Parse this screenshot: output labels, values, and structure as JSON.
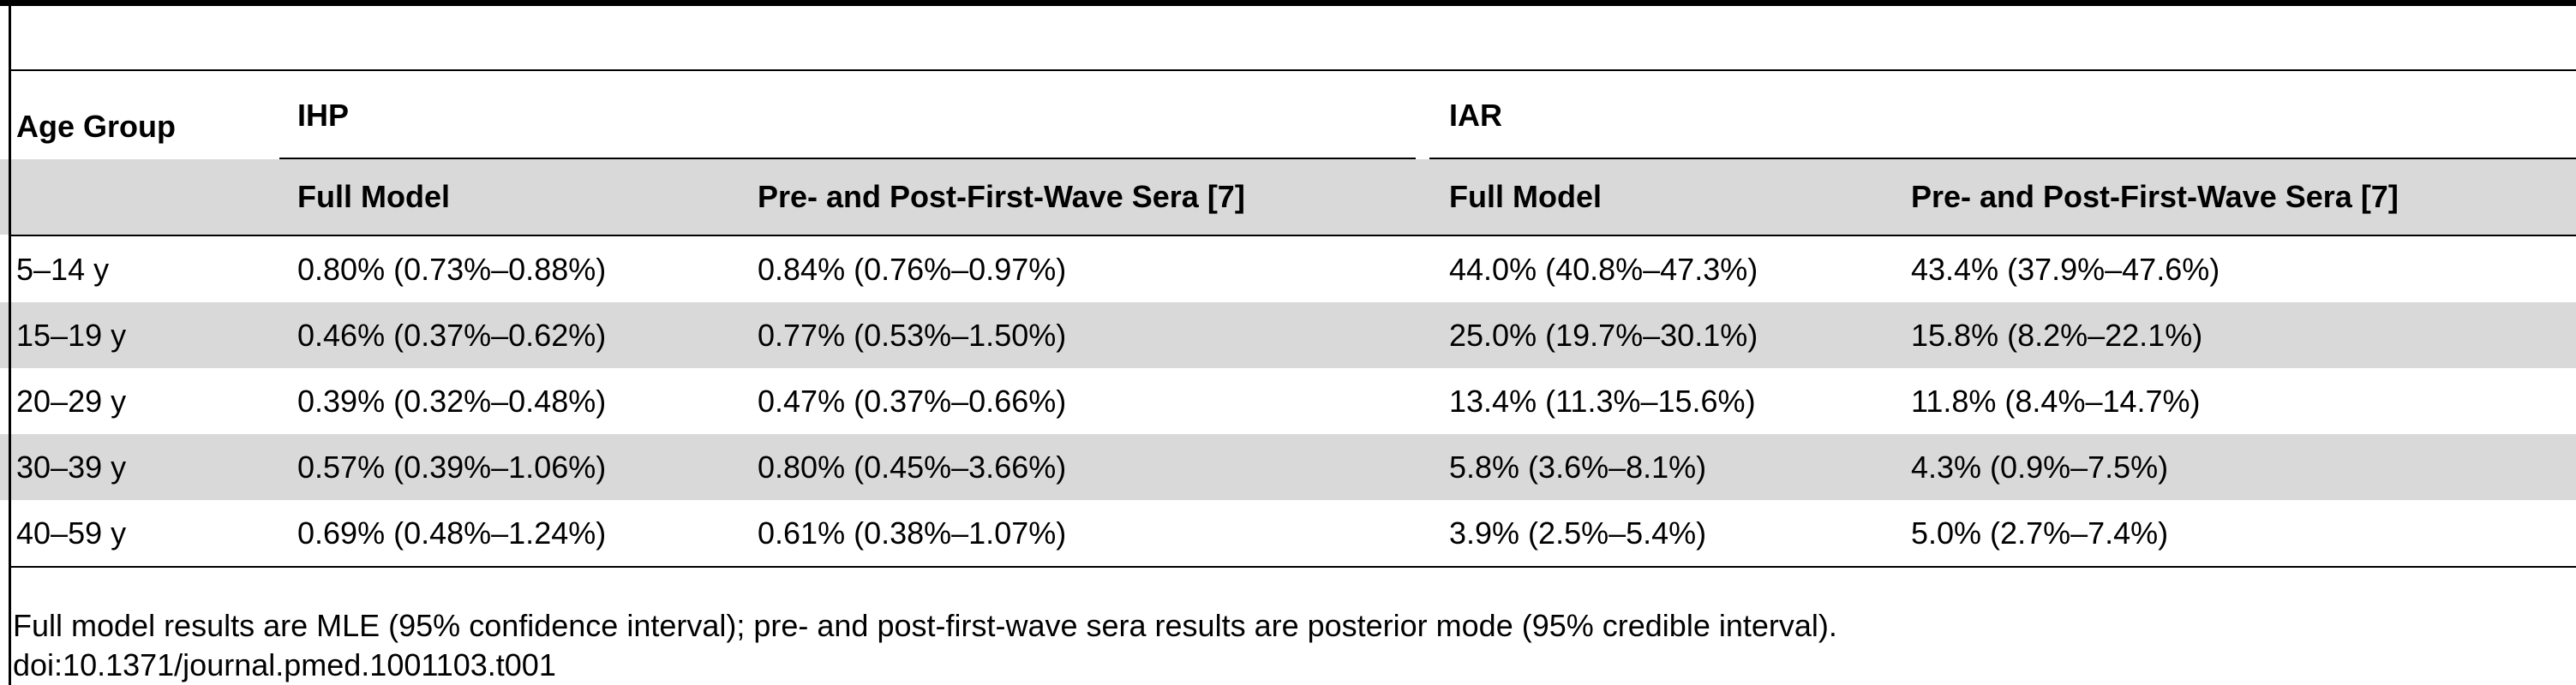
{
  "table": {
    "header": {
      "row_label": "Age Group",
      "groups": [
        {
          "label": "IHP",
          "subcolumns": [
            "Full Model",
            "Pre- and Post-First-Wave Sera [7]"
          ]
        },
        {
          "label": "IAR",
          "subcolumns": [
            "Full Model",
            "Pre- and Post-First-Wave Sera [7]"
          ]
        }
      ]
    },
    "rows": [
      {
        "age_group": "5–14 y",
        "values": [
          "0.80% (0.73%–0.88%)",
          "0.84% (0.76%–0.97%)",
          "44.0% (40.8%–47.3%)",
          "43.4% (37.9%–47.6%)"
        ]
      },
      {
        "age_group": "15–19 y",
        "values": [
          "0.46% (0.37%–0.62%)",
          "0.77% (0.53%–1.50%)",
          "25.0% (19.7%–30.1%)",
          "15.8% (8.2%–22.1%)"
        ]
      },
      {
        "age_group": "20–29 y",
        "values": [
          "0.39% (0.32%–0.48%)",
          "0.47% (0.37%–0.66%)",
          "13.4% (11.3%–15.6%)",
          "11.8% (8.4%–14.7%)"
        ]
      },
      {
        "age_group": "30–39 y",
        "values": [
          "0.57% (0.39%–1.06%)",
          "0.80% (0.45%–3.66%)",
          "5.8% (3.6%–8.1%)",
          "4.3% (0.9%–7.5%)"
        ]
      },
      {
        "age_group": "40–59 y",
        "values": [
          "0.69% (0.48%–1.24%)",
          "0.61% (0.38%–1.07%)",
          "3.9% (2.5%–5.4%)",
          "5.0% (2.7%–7.4%)"
        ]
      }
    ]
  },
  "footnote": "Full model results are MLE (95% confidence interval); pre- and post-first-wave sera results are posterior mode (95% credible interval).",
  "doi": "doi:10.1371/journal.pmed.1001103.t001",
  "colors": {
    "band": "#d9d9d9",
    "rule": "#000000",
    "text": "#000000"
  }
}
